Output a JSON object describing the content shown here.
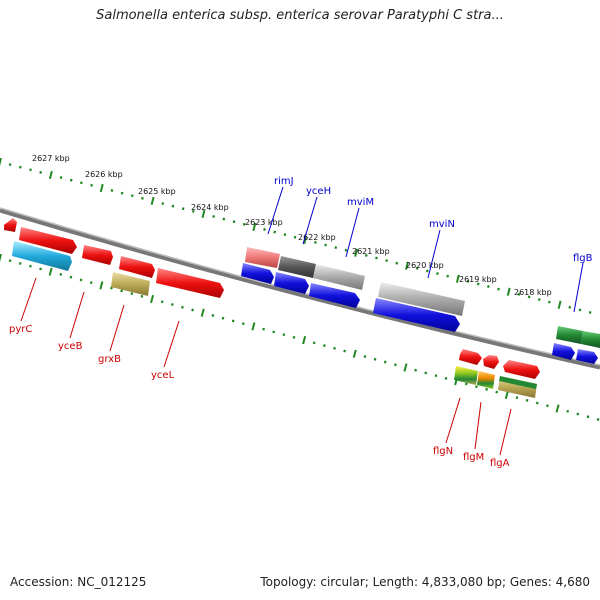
{
  "title": "Salmonella enterica subsp. enterica serovar Paratyphi C stra...",
  "footer": {
    "accession": "Accession: NC_012125",
    "summary": "Topology: circular; Length: 4,833,080 bp; Genes: 4,680"
  },
  "kbp_ticks": [
    "2627 kbp",
    "2626 kbp",
    "2625 kbp",
    "2624 kbp",
    "2623 kbp",
    "2622 kbp",
    "2621 kbp",
    "2620 kbp",
    "2619 kbp",
    "2618 kbp"
  ],
  "gene_labels": {
    "top": [
      {
        "name": "rimJ",
        "color": "#0000cc"
      },
      {
        "name": "yceH",
        "color": "#0000cc"
      },
      {
        "name": "mviM",
        "color": "#0000cc"
      },
      {
        "name": "mviN",
        "color": "#0000cc"
      },
      {
        "name": "flgB",
        "color": "#0000cc"
      }
    ],
    "bottom": [
      {
        "name": "pyrC",
        "color": "#cc0000"
      },
      {
        "name": "yceB",
        "color": "#cc0000"
      },
      {
        "name": "grxB",
        "color": "#cc0000"
      },
      {
        "name": "yceL",
        "color": "#cc0000"
      },
      {
        "name": "flgN",
        "color": "#cc0000"
      },
      {
        "name": "flgM",
        "color": "#cc0000"
      },
      {
        "name": "flgA",
        "color": "#cc0000"
      }
    ]
  },
  "colors": {
    "backbone": "#777777",
    "tick_green": "#228822",
    "gene_red": "#ee1111",
    "gene_blue": "#1111dd",
    "gene_cyan": "#22aadd",
    "gene_olive": "#bbaa55",
    "gene_gray": "#aaaaaa",
    "gene_darkgray": "#555555",
    "gene_pink": "#ee7777",
    "gene_green": "#228833",
    "gene_orange": "#ee8800",
    "gene_lime": "#99cc22"
  }
}
